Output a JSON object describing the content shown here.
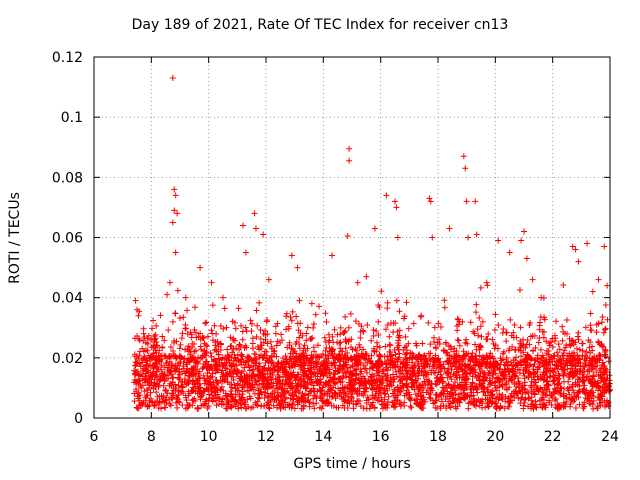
{
  "chart_data": {
    "type": "scatter",
    "title": "Day 189 of 2021, Rate Of TEC Index for receiver cn13",
    "xlabel": "GPS time / hours",
    "ylabel": "ROTI / TECUs",
    "xlim": [
      6,
      24
    ],
    "ylim": [
      0,
      0.12
    ],
    "xticks": [
      6,
      8,
      10,
      12,
      14,
      16,
      18,
      20,
      22,
      24
    ],
    "yticks": [
      0,
      0.02,
      0.04,
      0.06,
      0.08,
      0.1,
      0.12
    ],
    "xtick_labels": [
      "6",
      "8",
      "10",
      "12",
      "14",
      "16",
      "18",
      "20",
      "22",
      "24"
    ],
    "ytick_labels": [
      "0",
      "0.02",
      "0.04",
      "0.06",
      "0.08",
      "0.1",
      "0.12"
    ],
    "grid": true,
    "marker": "+",
    "color": "#ff0000",
    "series": [
      {
        "name": "ROTI",
        "x": [
          7.45,
          7.5,
          7.55,
          8.55,
          8.65,
          8.75,
          8.8,
          8.85,
          8.8,
          8.9,
          8.75,
          8.85,
          9.2,
          9.7,
          10.1,
          10.5,
          11.2,
          11.3,
          11.6,
          11.65,
          11.9,
          12.1,
          12.9,
          13.1,
          13.6,
          14.3,
          14.9,
          14.9,
          14.85,
          15.2,
          15.5,
          15.8,
          16.2,
          16.5,
          16.55,
          16.6,
          17.7,
          17.75,
          17.8,
          18.4,
          18.9,
          18.95,
          19.0,
          19.05,
          19.3,
          19.35,
          19.7,
          20.1,
          20.5,
          20.9,
          21.0,
          21.1,
          21.3,
          21.6,
          22.7,
          22.8,
          22.9,
          23.2,
          23.4,
          23.6,
          23.8,
          23.9
        ],
        "y": [
          0.039,
          0.036,
          0.034,
          0.041,
          0.045,
          0.113,
          0.076,
          0.074,
          0.069,
          0.068,
          0.065,
          0.055,
          0.04,
          0.05,
          0.045,
          0.04,
          0.064,
          0.055,
          0.068,
          0.063,
          0.061,
          0.046,
          0.054,
          0.05,
          0.038,
          0.054,
          0.0895,
          0.0855,
          0.0605,
          0.045,
          0.047,
          0.063,
          0.074,
          0.072,
          0.07,
          0.06,
          0.073,
          0.072,
          0.06,
          0.063,
          0.087,
          0.083,
          0.072,
          0.06,
          0.072,
          0.061,
          0.045,
          0.059,
          0.055,
          0.059,
          0.062,
          0.053,
          0.046,
          0.04,
          0.057,
          0.056,
          0.052,
          0.058,
          0.042,
          0.046,
          0.057,
          0.044
        ]
      }
    ]
  }
}
